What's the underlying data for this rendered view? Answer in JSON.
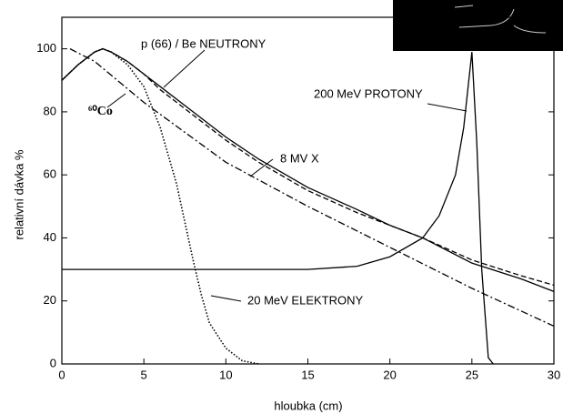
{
  "chart_data": {
    "type": "line",
    "xlabel": "hloubka (cm)",
    "ylabel": "relativní dávka %",
    "xlim": [
      0,
      30
    ],
    "ylim": [
      0,
      110
    ],
    "xticks": [
      0,
      5,
      10,
      15,
      20,
      25,
      30
    ],
    "yticks": [
      0,
      20,
      40,
      60,
      80,
      100
    ],
    "series": [
      {
        "name": "p (66) / Be NEUTRONY",
        "color": "#000000",
        "dash": "solid",
        "x": [
          0,
          1,
          2,
          2.5,
          3,
          4,
          5,
          6,
          8,
          10,
          12,
          15,
          18,
          20,
          22,
          25,
          28,
          30
        ],
        "values": [
          90,
          95,
          99,
          100,
          99,
          96,
          92,
          88,
          80,
          72,
          65,
          56,
          49,
          44,
          40,
          32,
          27,
          23
        ]
      },
      {
        "name": "8 MV X",
        "color": "#000000",
        "dash": "dashed",
        "x": [
          0,
          1,
          2,
          2.5,
          3,
          4,
          5,
          6,
          8,
          10,
          12,
          15,
          18,
          20,
          22,
          25,
          28,
          30
        ],
        "values": [
          90,
          95,
          99,
          100,
          99,
          96,
          92,
          87,
          79,
          71,
          64,
          55,
          48,
          44,
          40,
          33,
          28,
          25
        ]
      },
      {
        "name": "200 MeV PROTONY",
        "color": "#000000",
        "dash": "solid",
        "x": [
          0,
          5,
          10,
          15,
          18,
          20,
          22,
          23,
          24,
          24.5,
          25,
          25.3,
          25.6,
          26,
          26.3
        ],
        "values": [
          30,
          30,
          30,
          30,
          31,
          34,
          40,
          47,
          60,
          75,
          99,
          70,
          30,
          2,
          0
        ]
      },
      {
        "name": "⁶⁰Co",
        "color": "#000000",
        "dash": "dashdot",
        "x": [
          0.5,
          2,
          5,
          10,
          15,
          20,
          25,
          30
        ],
        "values": [
          100,
          96,
          83,
          64,
          50,
          37,
          24,
          12
        ]
      },
      {
        "name": "20 MeV ELEKTRONY",
        "color": "#000000",
        "dash": "dotted",
        "x": [
          0,
          1,
          2,
          2.5,
          3,
          4,
          5,
          6,
          7,
          8,
          8.5,
          9,
          10,
          11,
          12
        ],
        "values": [
          90,
          95,
          99,
          100,
          99,
          95,
          88,
          75,
          57,
          33,
          22,
          13,
          5,
          1,
          0
        ]
      }
    ]
  }
}
